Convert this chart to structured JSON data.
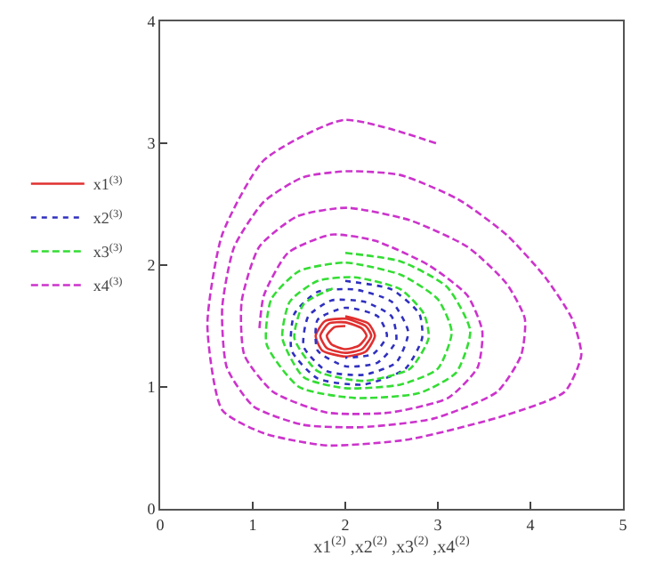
{
  "chart_data": {
    "type": "line",
    "xlabel": "x1$^{(2)}$ ,x2$^{(2)}$ ,x3$^{(2)}$ ,x4$^{(2)}$",
    "xlim": [
      0,
      5
    ],
    "ylim": [
      0,
      4
    ],
    "xticks": [
      0,
      1,
      2,
      3,
      4,
      5
    ],
    "yticks": [
      0,
      1,
      2,
      3,
      4
    ],
    "grid": false,
    "legend": "left",
    "marker": "none",
    "series": [
      {
        "name": "x1$^{(3)}$",
        "color": "#e03030",
        "line_style": "solid",
        "x": [
          2.0,
          2.25,
          2.32,
          2.22,
          2.0,
          1.75,
          1.68,
          1.78,
          2.0,
          2.22,
          2.28,
          2.18,
          2.0,
          1.8,
          1.73,
          1.82,
          2.0,
          2.18,
          2.23,
          2.15,
          2.0,
          1.85,
          1.8,
          1.88,
          2.0
        ],
        "values": [
          1.58,
          1.52,
          1.42,
          1.29,
          1.25,
          1.3,
          1.42,
          1.54,
          1.56,
          1.5,
          1.42,
          1.31,
          1.28,
          1.32,
          1.42,
          1.52,
          1.53,
          1.48,
          1.42,
          1.34,
          1.31,
          1.35,
          1.42,
          1.49,
          1.5
        ]
      },
      {
        "name": "x2$^{(3)}$",
        "color": "#3030c0",
        "line_style": "dotted",
        "x": [
          2.0,
          2.5,
          2.8,
          2.83,
          2.65,
          2.2,
          1.7,
          1.42,
          1.45,
          1.7,
          2.1,
          2.5,
          2.68,
          2.55,
          2.2,
          1.8,
          1.55,
          1.6,
          1.85,
          2.2,
          2.5,
          2.55,
          2.35,
          2.0,
          1.7,
          1.7,
          2.0,
          2.35,
          2.45,
          2.3,
          2.0
        ],
        "values": [
          1.87,
          1.8,
          1.6,
          1.4,
          1.15,
          1.02,
          1.07,
          1.3,
          1.6,
          1.78,
          1.8,
          1.7,
          1.45,
          1.2,
          1.1,
          1.13,
          1.33,
          1.58,
          1.71,
          1.7,
          1.58,
          1.38,
          1.2,
          1.17,
          1.3,
          1.55,
          1.65,
          1.58,
          1.42,
          1.27,
          1.24
        ]
      },
      {
        "name": "x3$^{(3)}$",
        "color": "#33dd33",
        "line_style": "dashed",
        "x": [
          2.0,
          2.6,
          3.1,
          3.35,
          3.2,
          2.8,
          2.1,
          1.5,
          1.15,
          1.2,
          1.5,
          2.0,
          2.6,
          3.0,
          3.15,
          3.0,
          2.6,
          2.0,
          1.55,
          1.32,
          1.4,
          1.7,
          2.1,
          2.6,
          2.85,
          2.9,
          2.7,
          2.2,
          1.7,
          1.45,
          1.55,
          1.9
        ],
        "values": [
          2.1,
          2.03,
          1.82,
          1.46,
          1.12,
          0.95,
          0.91,
          1.0,
          1.35,
          1.72,
          1.95,
          2.02,
          1.92,
          1.72,
          1.45,
          1.15,
          1.02,
          0.99,
          1.08,
          1.4,
          1.7,
          1.87,
          1.9,
          1.8,
          1.6,
          1.4,
          1.15,
          1.05,
          1.13,
          1.4,
          1.68,
          1.82
        ]
      },
      {
        "name": "x4$^{(3)}$",
        "color": "#cc33cc",
        "line_style": "dashed",
        "x": [
          2.98,
          1.98,
          1.12,
          0.67,
          0.51,
          0.67,
          1.12,
          1.8,
          2.69,
          3.74,
          4.37,
          4.55,
          4.45,
          4.16,
          3.74,
          3.22,
          2.59,
          2.01,
          1.54,
          1.12,
          0.8,
          0.67,
          0.72,
          1.01,
          1.54,
          2.17,
          2.95,
          3.64,
          3.9,
          3.94,
          3.74,
          3.32,
          2.69,
          2.01,
          1.48,
          1.07,
          0.88,
          0.91,
          1.22,
          1.8,
          2.48,
          3.11,
          3.43,
          3.48,
          3.32,
          2.9,
          2.32,
          1.85,
          1.38,
          1.12,
          1.07
        ],
        "values": [
          3.0,
          3.19,
          2.86,
          2.25,
          1.51,
          0.81,
          0.62,
          0.52,
          0.57,
          0.77,
          0.96,
          1.26,
          1.56,
          1.9,
          2.25,
          2.54,
          2.74,
          2.77,
          2.72,
          2.52,
          2.15,
          1.65,
          1.16,
          0.84,
          0.69,
          0.67,
          0.74,
          0.96,
          1.26,
          1.56,
          1.85,
          2.15,
          2.37,
          2.47,
          2.4,
          2.15,
          1.7,
          1.26,
          0.96,
          0.79,
          0.79,
          0.91,
          1.16,
          1.46,
          1.75,
          2.0,
          2.2,
          2.25,
          2.1,
          1.75,
          1.46
        ]
      }
    ]
  }
}
